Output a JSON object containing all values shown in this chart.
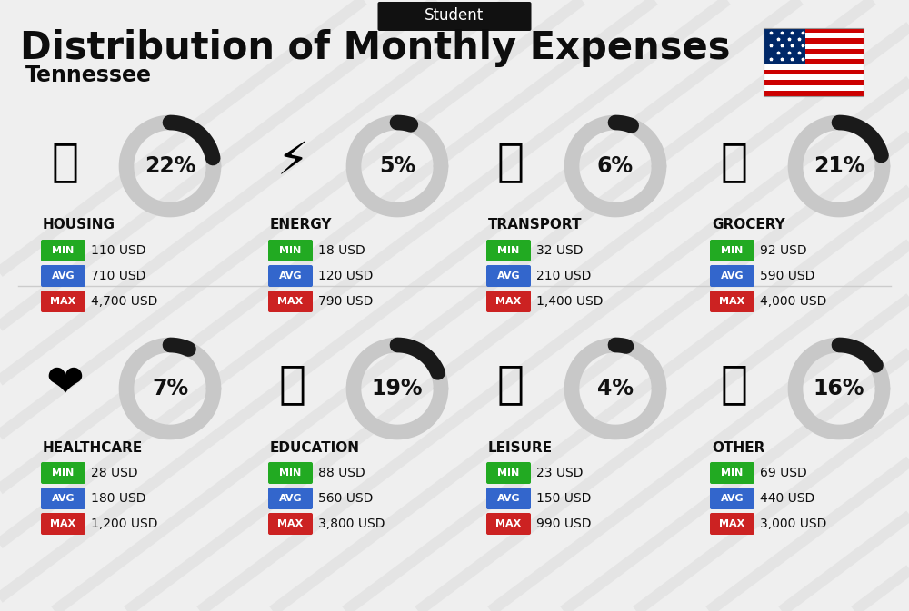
{
  "title": "Distribution of Monthly Expenses",
  "subtitle": "Tennessee",
  "header_label": "Student",
  "bg_color": "#efefef",
  "categories": [
    {
      "name": "HOUSING",
      "pct": 22,
      "min": "110 USD",
      "avg": "710 USD",
      "max": "4,700 USD",
      "row": 0,
      "col": 0
    },
    {
      "name": "ENERGY",
      "pct": 5,
      "min": "18 USD",
      "avg": "120 USD",
      "max": "790 USD",
      "row": 0,
      "col": 1
    },
    {
      "name": "TRANSPORT",
      "pct": 6,
      "min": "32 USD",
      "avg": "210 USD",
      "max": "1,400 USD",
      "row": 0,
      "col": 2
    },
    {
      "name": "GROCERY",
      "pct": 21,
      "min": "92 USD",
      "avg": "590 USD",
      "max": "4,000 USD",
      "row": 0,
      "col": 3
    },
    {
      "name": "HEALTHCARE",
      "pct": 7,
      "min": "28 USD",
      "avg": "180 USD",
      "max": "1,200 USD",
      "row": 1,
      "col": 0
    },
    {
      "name": "EDUCATION",
      "pct": 19,
      "min": "88 USD",
      "avg": "560 USD",
      "max": "3,800 USD",
      "row": 1,
      "col": 1
    },
    {
      "name": "LEISURE",
      "pct": 4,
      "min": "23 USD",
      "avg": "150 USD",
      "max": "990 USD",
      "row": 1,
      "col": 2
    },
    {
      "name": "OTHER",
      "pct": 16,
      "min": "69 USD",
      "avg": "440 USD",
      "max": "3,000 USD",
      "row": 1,
      "col": 3
    }
  ],
  "icons": [
    "🏢",
    "⚡",
    "🚌",
    "🛒",
    "❤️",
    "🎓",
    "🛍️",
    "💰"
  ],
  "min_color": "#22aa22",
  "avg_color": "#3366cc",
  "max_color": "#cc2222",
  "donut_bg": "#c8c8c8",
  "donut_fg": "#1a1a1a",
  "title_fontsize": 30,
  "subtitle_fontsize": 17,
  "header_fontsize": 12,
  "cat_fontsize": 11,
  "val_fontsize": 10,
  "pct_fontsize": 17,
  "badge_fontsize": 8
}
